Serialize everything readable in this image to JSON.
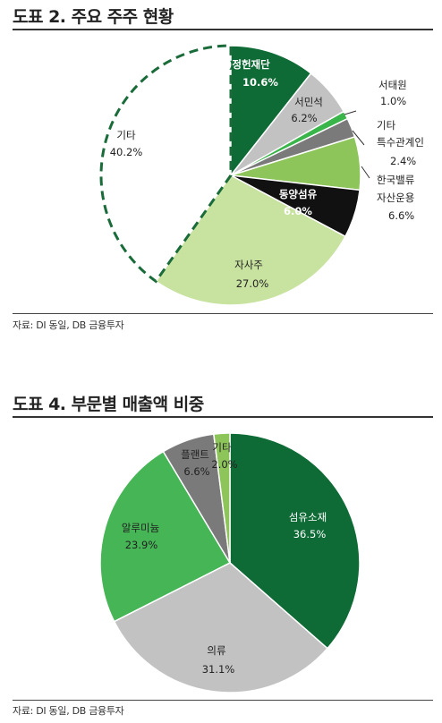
{
  "charts": [
    {
      "title": "도표 2. 주요 주주 현황",
      "source": "자료: DI 동일, DB 금융투자"
    },
    {
      "title": "도표 4. 부문별 매출액 비중",
      "source": "자료: DI 동일, DB 금융투자"
    }
  ],
  "chart_data": [
    {
      "type": "pie",
      "title": "도표 2. 주요 주주 현황",
      "slices": [
        {
          "label": "(재)정헌재단",
          "value": 10.6,
          "display": "10.6%",
          "color": "#0f6b36"
        },
        {
          "label": "서민석",
          "value": 6.2,
          "display": "6.2%",
          "color": "#c2c2c2"
        },
        {
          "label": "서태원",
          "value": 1.0,
          "display": "1.0%",
          "color": "#39b54a"
        },
        {
          "label": "기타 특수관계인",
          "value": 2.4,
          "display": "2.4%",
          "color": "#7a7a7a"
        },
        {
          "label": "한국밸류 자산운용",
          "value": 6.6,
          "display": "6.6%",
          "color": "#8dc55a"
        },
        {
          "label": "동양섬유",
          "value": 6.0,
          "display": "6.0%",
          "color": "#111111"
        },
        {
          "label": "자사주",
          "value": 27.0,
          "display": "27.0%",
          "color": "#c8e2a0"
        },
        {
          "label": "기타",
          "value": 40.2,
          "display": "40.2%",
          "color": "#ffffff"
        }
      ]
    },
    {
      "type": "pie",
      "title": "도표 4. 부문별 매출액 비중",
      "slices": [
        {
          "label": "섬유소재",
          "value": 36.5,
          "display": "36.5%",
          "color": "#0f6b36"
        },
        {
          "label": "의류",
          "value": 31.1,
          "display": "31.1%",
          "color": "#c2c2c2"
        },
        {
          "label": "알루미늄",
          "value": 23.9,
          "display": "23.9%",
          "color": "#45b556"
        },
        {
          "label": "플랜트",
          "value": 6.6,
          "display": "6.6%",
          "color": "#7a7a7a"
        },
        {
          "label": "기타",
          "value": 2.0,
          "display": "2.0%",
          "color": "#8dc55a"
        }
      ]
    }
  ]
}
